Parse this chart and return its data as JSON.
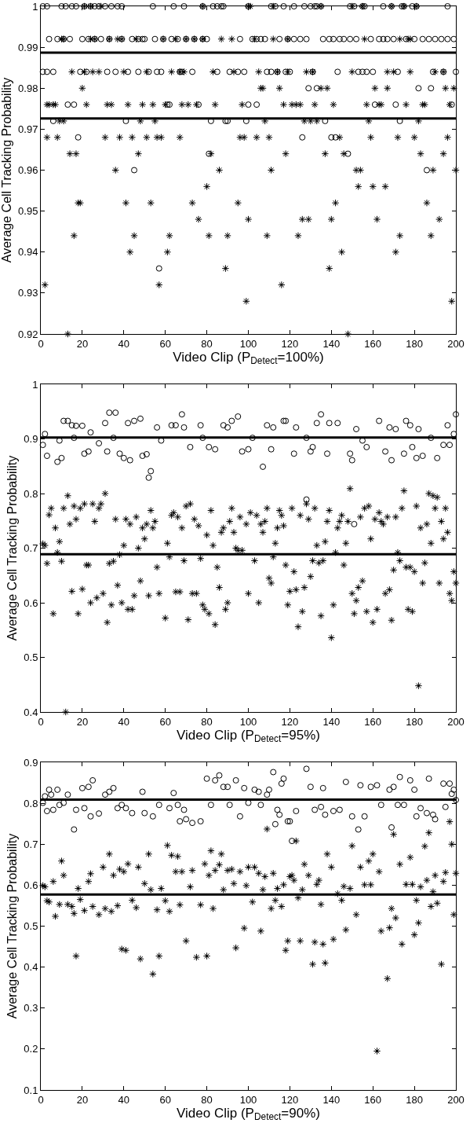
{
  "chart_data": [
    {
      "type": "scatter",
      "xlabel": "Video Clip (P$_{Detect}$=100%)",
      "ylabel": "Average Cell Tracking Probability",
      "xlim": [
        0,
        200
      ],
      "xticks": [
        0,
        20,
        40,
        60,
        80,
        100,
        120,
        140,
        160,
        180,
        200
      ],
      "ylim": [
        0.92,
        1
      ],
      "yticks": [
        0.92,
        0.93,
        0.94,
        0.95,
        0.96,
        0.97,
        0.98,
        0.99,
        1
      ],
      "grid": false,
      "ref_lines": [
        {
          "axis": "y",
          "value": 0.9887,
          "color": "#000000",
          "line_style": "solid"
        },
        {
          "axis": "y",
          "value": 0.9726,
          "color": "#000000",
          "line_style": "solid"
        }
      ],
      "series": [
        {
          "color": "#000000",
          "marker": "circle",
          "x": [
            1,
            3,
            10,
            12,
            15,
            17,
            21,
            24,
            26,
            28,
            31,
            34,
            37,
            39,
            54,
            64,
            69,
            78,
            83,
            85,
            87,
            88,
            100,
            111,
            113,
            117,
            122,
            127,
            130,
            132,
            133,
            135,
            149,
            151,
            155,
            156,
            165,
            169,
            174,
            175,
            179,
            181,
            196,
            4,
            8,
            11,
            14,
            20,
            23,
            26,
            29,
            33,
            39,
            44,
            47,
            49,
            50,
            55,
            59,
            63,
            66,
            70,
            74,
            78,
            80,
            96,
            102,
            104,
            106,
            108,
            115,
            119,
            122,
            125,
            128,
            136,
            139,
            141,
            144,
            146,
            149,
            152,
            159,
            163,
            165,
            167,
            170,
            176,
            180,
            184,
            187,
            190,
            193,
            196,
            199,
            1,
            3,
            6,
            19,
            22,
            32,
            36,
            42,
            47,
            52,
            56,
            58,
            67,
            68,
            73,
            85,
            91,
            95,
            98,
            109,
            111,
            114,
            118,
            120,
            131,
            143,
            153,
            155,
            157,
            160,
            172,
            189,
            194,
            200,
            129,
            133,
            182,
            188,
            13,
            16,
            61,
            62,
            76,
            100,
            104,
            161,
            171,
            198,
            6,
            41,
            82,
            89,
            90,
            99,
            137,
            173,
            18,
            126,
            140,
            142,
            81,
            148,
            45,
            186,
            57
          ],
          "values": [
            1,
            1,
            1,
            1,
            1,
            1,
            1,
            1,
            1,
            1,
            1,
            1,
            1,
            1,
            1,
            1,
            1,
            1,
            1,
            1,
            1,
            1,
            1,
            1,
            1,
            1,
            1,
            1,
            1,
            1,
            1,
            1,
            1,
            1,
            1,
            1,
            1,
            1,
            1,
            1,
            1,
            1,
            1,
            0.992,
            0.992,
            0.992,
            0.992,
            0.992,
            0.992,
            0.992,
            0.992,
            0.992,
            0.992,
            0.992,
            0.992,
            0.992,
            0.992,
            0.992,
            0.992,
            0.992,
            0.992,
            0.992,
            0.992,
            0.992,
            0.992,
            0.992,
            0.992,
            0.992,
            0.992,
            0.992,
            0.992,
            0.992,
            0.992,
            0.992,
            0.992,
            0.992,
            0.992,
            0.992,
            0.992,
            0.992,
            0.992,
            0.992,
            0.992,
            0.992,
            0.992,
            0.992,
            0.992,
            0.992,
            0.992,
            0.992,
            0.992,
            0.992,
            0.992,
            0.992,
            0.992,
            0.984,
            0.984,
            0.984,
            0.984,
            0.984,
            0.984,
            0.984,
            0.984,
            0.984,
            0.984,
            0.984,
            0.984,
            0.984,
            0.984,
            0.984,
            0.984,
            0.984,
            0.984,
            0.984,
            0.984,
            0.984,
            0.984,
            0.984,
            0.984,
            0.984,
            0.984,
            0.984,
            0.984,
            0.984,
            0.984,
            0.984,
            0.984,
            0.984,
            0.984,
            0.98,
            0.98,
            0.98,
            0.98,
            0.976,
            0.976,
            0.976,
            0.976,
            0.976,
            0.976,
            0.976,
            0.976,
            0.976,
            0.976,
            0.972,
            0.972,
            0.972,
            0.972,
            0.972,
            0.972,
            0.972,
            0.972,
            0.968,
            0.968,
            0.968,
            0.968,
            0.964,
            0.964,
            0.96,
            0.96,
            0.936
          ]
        },
        {
          "color": "#000000",
          "marker": "cross",
          "x": [
            78,
            100,
            101,
            112,
            135,
            150,
            155,
            169,
            175,
            181,
            21,
            24,
            29,
            10,
            11,
            24,
            26,
            33,
            37,
            39,
            46,
            59,
            65,
            70,
            74,
            78,
            87,
            92,
            103,
            112,
            119,
            156,
            173,
            177,
            178,
            15,
            21,
            25,
            28,
            40,
            51,
            63,
            67,
            69,
            83,
            93,
            105,
            114,
            119,
            128,
            131,
            150,
            167,
            170,
            178,
            190,
            194,
            20,
            106,
            107,
            115,
            135,
            138,
            161,
            167,
            195,
            199,
            3,
            4,
            6,
            7,
            22,
            32,
            34,
            42,
            49,
            54,
            60,
            68,
            71,
            75,
            84,
            97,
            117,
            121,
            123,
            125,
            132,
            141,
            157,
            163,
            164,
            176,
            184,
            185,
            197,
            9,
            11,
            48,
            55,
            108,
            127,
            130,
            133,
            158,
            182,
            3,
            8,
            31,
            38,
            44,
            51,
            56,
            58,
            67,
            96,
            98,
            104,
            110,
            144,
            159,
            172,
            180,
            196,
            14,
            17,
            47,
            82,
            118,
            137,
            146,
            183,
            194,
            36,
            86,
            111,
            152,
            154,
            189,
            200,
            80,
            153,
            160,
            166,
            18,
            19,
            41,
            53,
            73,
            95,
            142,
            186,
            76,
            100,
            126,
            129,
            140,
            162,
            192,
            16,
            45,
            62,
            81,
            90,
            109,
            124,
            173,
            188,
            43,
            61,
            145,
            171,
            89,
            139,
            2,
            57,
            116,
            99,
            198,
            13,
            148
          ],
          "values": [
            1,
            1,
            1,
            1,
            1,
            1,
            1,
            1,
            1,
            1,
            1,
            1,
            1,
            0.992,
            0.992,
            0.992,
            0.992,
            0.992,
            0.992,
            0.992,
            0.992,
            0.992,
            0.992,
            0.992,
            0.992,
            0.992,
            0.992,
            0.992,
            0.992,
            0.992,
            0.992,
            0.992,
            0.992,
            0.992,
            0.992,
            0.984,
            0.984,
            0.984,
            0.984,
            0.984,
            0.984,
            0.984,
            0.984,
            0.984,
            0.984,
            0.984,
            0.984,
            0.984,
            0.984,
            0.984,
            0.984,
            0.984,
            0.984,
            0.984,
            0.984,
            0.984,
            0.984,
            0.98,
            0.98,
            0.98,
            0.98,
            0.98,
            0.98,
            0.98,
            0.98,
            0.98,
            0.98,
            0.976,
            0.976,
            0.976,
            0.976,
            0.976,
            0.976,
            0.976,
            0.976,
            0.976,
            0.976,
            0.976,
            0.976,
            0.976,
            0.976,
            0.976,
            0.976,
            0.976,
            0.976,
            0.976,
            0.976,
            0.976,
            0.976,
            0.976,
            0.976,
            0.976,
            0.976,
            0.976,
            0.976,
            0.976,
            0.972,
            0.972,
            0.972,
            0.972,
            0.972,
            0.972,
            0.972,
            0.972,
            0.972,
            0.972,
            0.968,
            0.968,
            0.968,
            0.968,
            0.968,
            0.968,
            0.968,
            0.968,
            0.968,
            0.968,
            0.968,
            0.968,
            0.968,
            0.968,
            0.968,
            0.968,
            0.968,
            0.968,
            0.964,
            0.964,
            0.964,
            0.964,
            0.964,
            0.964,
            0.964,
            0.964,
            0.964,
            0.96,
            0.96,
            0.96,
            0.96,
            0.96,
            0.96,
            0.96,
            0.956,
            0.956,
            0.956,
            0.956,
            0.952,
            0.952,
            0.952,
            0.952,
            0.952,
            0.952,
            0.952,
            0.952,
            0.948,
            0.948,
            0.948,
            0.948,
            0.948,
            0.948,
            0.948,
            0.944,
            0.944,
            0.944,
            0.944,
            0.944,
            0.944,
            0.944,
            0.944,
            0.944,
            0.94,
            0.94,
            0.94,
            0.94,
            0.936,
            0.936,
            0.932,
            0.932,
            0.932,
            0.928,
            0.928,
            0.92,
            0.92
          ]
        }
      ]
    },
    {
      "type": "scatter",
      "xlabel": "Video Clip (P$_{Detect}$=95%)",
      "ylabel": "Average Cell Tracking Probability",
      "xlim": [
        0,
        200
      ],
      "xticks": [
        0,
        20,
        40,
        60,
        80,
        100,
        120,
        140,
        160,
        180,
        200
      ],
      "ylim": [
        0.4,
        1
      ],
      "yticks": [
        0.4,
        0.5,
        0.6,
        0.7,
        0.8,
        0.9,
        1
      ],
      "grid": false,
      "ref_lines": [
        {
          "axis": "y",
          "value": 0.9025,
          "color": "#000000",
          "line_style": "solid"
        },
        {
          "axis": "y",
          "value": 0.689,
          "color": "#000000",
          "line_style": "solid"
        }
      ],
      "series": [
        {
          "color": "#000000",
          "marker": "circle",
          "x": [
            1,
            2,
            3,
            8,
            10,
            11,
            13,
            15,
            17,
            20,
            21,
            23,
            24,
            28,
            31,
            32,
            33,
            36,
            38,
            40,
            43,
            42,
            45,
            48,
            49,
            51,
            52,
            53,
            56,
            63,
            65,
            68,
            69,
            72,
            77,
            81,
            84,
            88,
            90,
            92,
            95,
            97,
            100,
            107,
            109,
            111,
            112,
            117,
            118,
            122,
            123,
            131,
            130,
            133,
            135,
            138,
            139,
            143,
            149,
            150,
            151,
            128,
            152,
            157,
            163,
            166,
            169,
            168,
            171,
            175,
            176,
            178,
            179,
            181,
            182,
            184,
            191,
            194,
            197,
            196,
            200,
            199,
            9,
            16,
            35,
            58,
            78,
            102,
            128,
            155,
            188
          ],
          "values": [
            0.889,
            0.909,
            0.869,
            0.858,
            0.865,
            0.933,
            0.933,
            0.925,
            0.924,
            0.924,
            0.873,
            0.877,
            0.912,
            0.892,
            0.929,
            0.877,
            0.948,
            0.948,
            0.873,
            0.865,
            0.861,
            0.929,
            0.933,
            0.937,
            0.869,
            0.872,
            0.829,
            0.841,
            0.921,
            0.925,
            0.925,
            0.945,
            0.921,
            0.885,
            0.925,
            0.885,
            0.881,
            0.925,
            0.921,
            0.933,
            0.941,
            0.877,
            0.881,
            0.849,
            0.925,
            0.881,
            0.921,
            0.933,
            0.933,
            0.873,
            0.921,
            0.885,
            0.877,
            0.929,
            0.945,
            0.873,
            0.929,
            0.929,
            0.873,
            0.861,
            0.744,
            0.789,
            0.918,
            0.885,
            0.933,
            0.877,
            0.861,
            0.921,
            0.918,
            0.873,
            0.933,
            0.925,
            0.885,
            0.865,
            0.918,
            0.869,
            0.865,
            0.889,
            0.889,
            0.925,
            0.945,
            0.909,
            0.897,
            0.902,
            0.902,
            0.897,
            0.902,
            0.902,
            0.902,
            0.897,
            0.902
          ]
        },
        {
          "color": "#000000",
          "marker": "cross",
          "x": [
            1,
            2,
            3,
            4,
            5,
            6,
            7,
            8,
            9,
            10,
            11,
            12,
            13,
            14,
            15,
            16,
            17,
            18,
            19,
            20,
            21,
            22,
            23,
            24,
            25,
            26,
            27,
            28,
            29,
            30,
            31,
            32,
            33,
            34,
            35,
            36,
            37,
            38,
            39,
            40,
            41,
            42,
            43,
            44,
            45,
            46,
            47,
            48,
            49,
            50,
            51,
            52,
            53,
            54,
            55,
            56,
            57,
            60,
            61,
            62,
            63,
            64,
            65,
            66,
            67,
            68,
            69,
            70,
            71,
            72,
            73,
            74,
            75,
            76,
            77,
            78,
            79,
            80,
            81,
            82,
            83,
            84,
            85,
            86,
            87,
            88,
            89,
            90,
            91,
            92,
            93,
            94,
            95,
            96,
            97,
            99,
            100,
            101,
            103,
            104,
            105,
            106,
            107,
            108,
            109,
            110,
            111,
            112,
            113,
            114,
            115,
            116,
            117,
            118,
            119,
            120,
            121,
            122,
            123,
            124,
            125,
            126,
            127,
            128,
            129,
            130,
            131,
            132,
            133,
            134,
            135,
            136,
            137,
            138,
            139,
            140,
            141,
            142,
            143,
            144,
            145,
            146,
            147,
            148,
            149,
            150,
            151,
            152,
            153,
            154,
            155,
            156,
            157,
            158,
            159,
            160,
            161,
            162,
            163,
            164,
            165,
            166,
            167,
            168,
            169,
            170,
            171,
            172,
            173,
            174,
            175,
            176,
            177,
            178,
            179,
            180,
            181,
            182,
            183,
            184,
            185,
            186,
            187,
            188,
            189,
            190,
            191,
            192,
            193,
            194,
            195,
            196,
            197,
            198,
            199,
            200
          ],
          "values": [
            0.708,
            0.705,
            0.672,
            0.761,
            0.773,
            0.58,
            0.737,
            0.692,
            0.712,
            0.676,
            0.773,
            0.4,
            0.796,
            0.744,
            0.621,
            0.777,
            0.753,
            0.58,
            0.773,
            0.625,
            0.781,
            0.669,
            0.669,
            0.6,
            0.781,
            0.749,
            0.609,
            0.773,
            0.781,
            0.617,
            0.8,
            0.564,
            0.672,
            0.596,
            0.676,
            0.753,
            0.632,
            0.688,
            0.6,
            0.705,
            0.753,
            0.588,
            0.744,
            0.588,
            0.613,
            0.757,
            0.7,
            0.64,
            0.737,
            0.717,
            0.744,
            0.613,
            0.769,
            0.737,
            0.749,
            0.665,
            0.617,
            0.572,
            0.709,
            0.684,
            0.76,
            0.765,
            0.62,
            0.757,
            0.62,
            0.737,
            0.677,
            0.777,
            0.569,
            0.781,
            0.617,
            0.753,
            0.617,
            0.741,
            0.681,
            0.596,
            0.588,
            0.724,
            0.58,
            0.769,
            0.705,
            0.56,
            0.665,
            0.628,
            0.729,
            0.737,
            0.588,
            0.6,
            0.749,
            0.773,
            0.729,
            0.7,
            0.696,
            0.757,
            0.696,
            0.744,
            0.617,
            0.765,
            0.677,
            0.76,
            0.6,
            0.744,
            0.729,
            0.749,
            0.773,
            0.645,
            0.636,
            0.684,
            0.709,
            0.737,
            0.769,
            0.76,
            0.741,
            0.669,
            0.596,
            0.621,
            0.773,
            0.657,
            0.624,
            0.556,
            0.76,
            0.584,
            0.628,
            0.781,
            0.753,
            0.648,
            0.677,
            0.773,
            0.705,
            0.673,
            0.576,
            0.677,
            0.712,
            0.749,
            0.769,
            0.536,
            0.596,
            0.692,
            0.737,
            0.749,
            0.76,
            0.669,
            0.709,
            0.749,
            0.809,
            0.617,
            0.58,
            0.604,
            0.628,
            0.757,
            0.64,
            0.773,
            0.584,
            0.777,
            0.717,
            0.564,
            0.753,
            0.588,
            0.765,
            0.749,
            0.744,
            0.617,
            0.757,
            0.624,
            0.568,
            0.66,
            0.757,
            0.692,
            0.677,
            0.773,
            0.805,
            0.665,
            0.588,
            0.665,
            0.584,
            0.657,
            0.777,
            0.448,
            0.737,
            0.636,
            0.673,
            0.744,
            0.8,
            0.709,
            0.796,
            0.773,
            0.793,
            0.636,
            0.749,
            0.717,
            0.773,
            0.729,
            0.617,
            0.604,
            0.657,
            0.636
          ]
        }
      ]
    },
    {
      "type": "scatter",
      "xlabel": "Video Clip (P$_{Detect}$=90%)",
      "ylabel": "Average Cell Tracking Probability",
      "xlim": [
        0,
        200
      ],
      "xticks": [
        0,
        20,
        40,
        60,
        80,
        100,
        120,
        140,
        160,
        180,
        200
      ],
      "ylim": [
        0.1,
        0.9
      ],
      "yticks": [
        0.1,
        0.2,
        0.3,
        0.4,
        0.5,
        0.6,
        0.7,
        0.8,
        0.9
      ],
      "grid": false,
      "ref_lines": [
        {
          "axis": "y",
          "value": 0.809,
          "color": "#000000",
          "line_style": "solid"
        },
        {
          "axis": "y",
          "value": 0.577,
          "color": "#000000",
          "line_style": "solid"
        }
      ],
      "series": [
        {
          "color": "#000000",
          "marker": "circle",
          "x": [
            1,
            2,
            3,
            4,
            5,
            6,
            8,
            9,
            11,
            13,
            16,
            17,
            20,
            21,
            23,
            24,
            25,
            28,
            31,
            33,
            35,
            37,
            39,
            41,
            44,
            49,
            50,
            54,
            57,
            62,
            64,
            66,
            67,
            69,
            70,
            73,
            77,
            80,
            82,
            84,
            86,
            88,
            90,
            91,
            94,
            96,
            98,
            100,
            103,
            105,
            106,
            109,
            110,
            112,
            113,
            114,
            115,
            116,
            117,
            119,
            120,
            121,
            123,
            128,
            130,
            132,
            135,
            136,
            137,
            141,
            144,
            147,
            150,
            153,
            154,
            156,
            159,
            162,
            164,
            168,
            169,
            170,
            172,
            173,
            175,
            178,
            180,
            181,
            183,
            186,
            187,
            189,
            190,
            194,
            195,
            197,
            198,
            199,
            200
          ],
          "values": [
            0.801,
            0.817,
            0.781,
            0.833,
            0.821,
            0.784,
            0.833,
            0.796,
            0.801,
            0.821,
            0.736,
            0.784,
            0.837,
            0.788,
            0.84,
            0.768,
            0.856,
            0.775,
            0.821,
            0.828,
            0.837,
            0.788,
            0.796,
            0.788,
            0.776,
            0.828,
            0.776,
            0.768,
            0.796,
            0.788,
            0.825,
            0.796,
            0.756,
            0.784,
            0.761,
            0.752,
            0.756,
            0.86,
            0.796,
            0.856,
            0.868,
            0.84,
            0.84,
            0.796,
            0.856,
            0.768,
            0.837,
            0.801,
            0.833,
            0.828,
            0.796,
            0.821,
            0.833,
            0.876,
            0.749,
            0.784,
            0.772,
            0.848,
            0.86,
            0.756,
            0.756,
            0.708,
            0.781,
            0.884,
            0.84,
            0.784,
            0.791,
            0.837,
            0.772,
            0.781,
            0.784,
            0.852,
            0.768,
            0.736,
            0.844,
            0.768,
            0.84,
            0.844,
            0.796,
            0.833,
            0.741,
            0.84,
            0.796,
            0.864,
            0.796,
            0.856,
            0.833,
            0.768,
            0.788,
            0.776,
            0.86,
            0.772,
            0.761,
            0.848,
            0.791,
            0.848,
            0.823,
            0.833,
            0.808
          ]
        },
        {
          "color": "#000000",
          "marker": "cross",
          "x": [
            1,
            2,
            3,
            4,
            6,
            7,
            9,
            10,
            11,
            13,
            15,
            16,
            17,
            18,
            19,
            21,
            23,
            24,
            25,
            28,
            30,
            31,
            33,
            34,
            35,
            37,
            38,
            39,
            40,
            41,
            42,
            44,
            46,
            47,
            48,
            50,
            52,
            53,
            54,
            56,
            57,
            58,
            60,
            61,
            62,
            63,
            65,
            66,
            67,
            68,
            70,
            72,
            73,
            75,
            77,
            79,
            80,
            81,
            82,
            83,
            84,
            86,
            87,
            88,
            90,
            92,
            93,
            94,
            96,
            98,
            99,
            100,
            102,
            103,
            105,
            106,
            107,
            108,
            109,
            111,
            112,
            113,
            114,
            116,
            117,
            118,
            119,
            120,
            121,
            122,
            123,
            124,
            125,
            126,
            127,
            129,
            131,
            132,
            133,
            134,
            135,
            136,
            137,
            138,
            140,
            141,
            143,
            145,
            146,
            147,
            149,
            150,
            152,
            154,
            156,
            158,
            159,
            160,
            162,
            163,
            164,
            167,
            168,
            169,
            170,
            171,
            173,
            174,
            176,
            178,
            179,
            180,
            181,
            182,
            183,
            185,
            186,
            187,
            188,
            189,
            190,
            191,
            193,
            194,
            195,
            197,
            198,
            199,
            200
          ],
          "values": [
            0.599,
            0.596,
            0.562,
            0.559,
            0.609,
            0.524,
            0.553,
            0.659,
            0.624,
            0.553,
            0.548,
            0.531,
            0.427,
            0.592,
            0.565,
            0.538,
            0.609,
            0.628,
            0.548,
            0.528,
            0.644,
            0.543,
            0.676,
            0.536,
            0.624,
            0.55,
            0.639,
            0.444,
            0.633,
            0.441,
            0.652,
            0.563,
            0.545,
            0.644,
            0.42,
            0.604,
            0.676,
            0.589,
            0.383,
            0.54,
            0.427,
            0.592,
            0.562,
            0.697,
            0.536,
            0.673,
            0.633,
            0.67,
            0.552,
            0.633,
            0.464,
            0.596,
            0.636,
            0.424,
            0.552,
            0.652,
            0.427,
            0.624,
            0.684,
            0.543,
            0.636,
            0.65,
            0.676,
            0.589,
            0.636,
            0.639,
            0.604,
            0.447,
            0.633,
            0.495,
            0.599,
            0.644,
            0.559,
            0.644,
            0.629,
            0.488,
            0.589,
            0.621,
            0.737,
            0.543,
            0.629,
            0.563,
            0.592,
            0.548,
            0.601,
            0.441,
            0.464,
            0.621,
            0.624,
            0.612,
            0.708,
            0.569,
            0.464,
            0.589,
            0.651,
            0.624,
            0.407,
            0.461,
            0.602,
            0.612,
            0.553,
            0.456,
            0.41,
            0.676,
            0.644,
            0.468,
            0.579,
            0.563,
            0.597,
            0.491,
            0.592,
            0.696,
            0.528,
            0.644,
            0.601,
            0.659,
            0.601,
            0.676,
            0.195,
            0.633,
            0.488,
            0.372,
            0.496,
            0.543,
            0.724,
            0.52,
            0.651,
            0.456,
            0.602,
            0.668,
            0.602,
            0.479,
            0.563,
            0.508,
            0.596,
            0.695,
            0.612,
            0.728,
            0.548,
            0.584,
            0.624,
            0.556,
            0.407,
            0.609,
            0.631,
            0.755,
            0.7,
            0.528,
            0.629
          ]
        }
      ]
    }
  ]
}
